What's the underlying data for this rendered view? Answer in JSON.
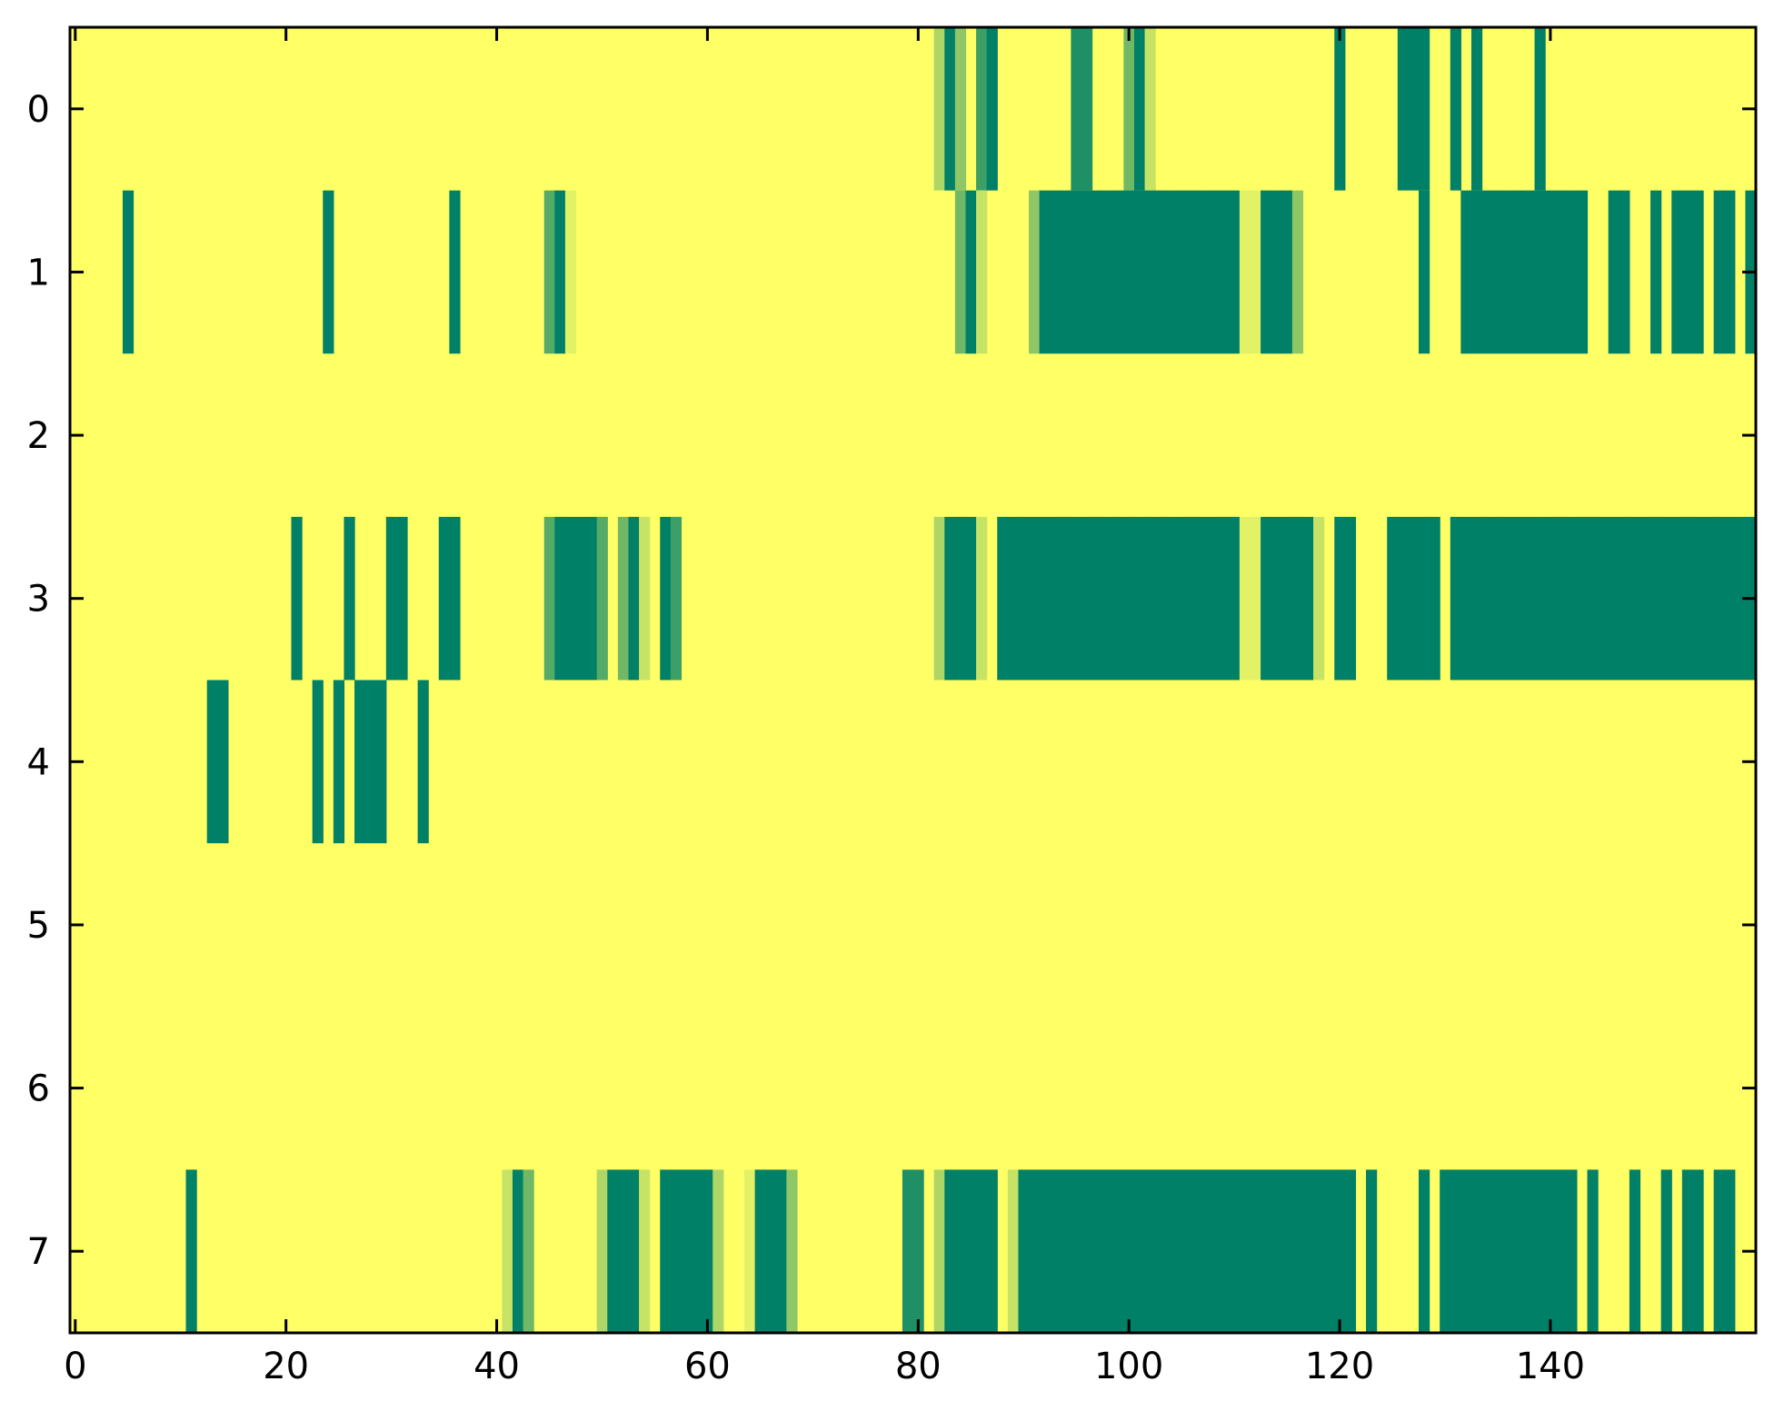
{
  "chart_data": {
    "type": "heatmap",
    "title": "",
    "xlabel": "",
    "ylabel": "",
    "colormap": "summer_r",
    "colors": {
      "low": "#ffff66",
      "high": "#008066"
    },
    "n_rows": 8,
    "n_cols": 160,
    "xlim": [
      -0.5,
      159.5
    ],
    "ylim": [
      7.5,
      -0.5
    ],
    "xticks": [
      0,
      20,
      40,
      60,
      80,
      100,
      120,
      140
    ],
    "xtick_labels": [
      "0",
      "20",
      "40",
      "60",
      "80",
      "100",
      "120",
      "140"
    ],
    "yticks": [
      0,
      1,
      2,
      3,
      4,
      5,
      6,
      7
    ],
    "ytick_labels": [
      "0",
      "1",
      "2",
      "3",
      "4",
      "5",
      "6",
      "7"
    ],
    "default_value": 0,
    "runs_format": "[first_col, last_col, value]",
    "rows": [
      [
        [
          82,
          82,
          0.32
        ],
        [
          83,
          83,
          1
        ],
        [
          84,
          84,
          0.44
        ],
        [
          86,
          86,
          0.76
        ],
        [
          87,
          87,
          1
        ],
        [
          95,
          96,
          0.88
        ],
        [
          100,
          100,
          0.56
        ],
        [
          101,
          101,
          1
        ],
        [
          102,
          102,
          0.22
        ],
        [
          120,
          120,
          1
        ],
        [
          126,
          128,
          1
        ],
        [
          131,
          131,
          1
        ],
        [
          133,
          133,
          1
        ],
        [
          139,
          139,
          1
        ]
      ],
      [
        [
          5,
          5,
          1
        ],
        [
          24,
          24,
          1
        ],
        [
          36,
          36,
          1
        ],
        [
          45,
          45,
          0.67
        ],
        [
          46,
          46,
          1
        ],
        [
          47,
          47,
          0.11
        ],
        [
          84,
          84,
          0.56
        ],
        [
          85,
          85,
          1
        ],
        [
          86,
          86,
          0.22
        ],
        [
          91,
          91,
          0.44
        ],
        [
          92,
          110,
          1
        ],
        [
          111,
          112,
          0.11
        ],
        [
          113,
          115,
          1
        ],
        [
          116,
          116,
          0.44
        ],
        [
          128,
          128,
          1
        ],
        [
          132,
          143,
          1
        ],
        [
          146,
          147,
          1
        ],
        [
          150,
          150,
          1
        ],
        [
          152,
          154,
          1
        ],
        [
          156,
          157,
          1
        ],
        [
          159,
          159,
          1
        ]
      ],
      [],
      [
        [
          21,
          21,
          1
        ],
        [
          26,
          26,
          1
        ],
        [
          30,
          31,
          1
        ],
        [
          35,
          36,
          1
        ],
        [
          45,
          45,
          0.67
        ],
        [
          46,
          49,
          1
        ],
        [
          50,
          50,
          0.67
        ],
        [
          52,
          52,
          0.56
        ],
        [
          53,
          53,
          1
        ],
        [
          54,
          54,
          0.22
        ],
        [
          56,
          56,
          1
        ],
        [
          57,
          57,
          0.76
        ],
        [
          82,
          82,
          0.32
        ],
        [
          83,
          85,
          1
        ],
        [
          86,
          86,
          0.22
        ],
        [
          88,
          110,
          1
        ],
        [
          111,
          112,
          0.11
        ],
        [
          113,
          117,
          1
        ],
        [
          118,
          118,
          0.22
        ],
        [
          120,
          121,
          1
        ],
        [
          125,
          129,
          1
        ],
        [
          131,
          159,
          1
        ]
      ],
      [
        [
          13,
          14,
          1
        ],
        [
          23,
          23,
          1
        ],
        [
          25,
          25,
          1
        ],
        [
          27,
          29,
          1
        ],
        [
          33,
          33,
          1
        ]
      ],
      [],
      [],
      [
        [
          11,
          11,
          1
        ],
        [
          41,
          41,
          0.22
        ],
        [
          42,
          42,
          1
        ],
        [
          43,
          43,
          0.56
        ],
        [
          50,
          50,
          0.32
        ],
        [
          51,
          53,
          1
        ],
        [
          54,
          54,
          0.22
        ],
        [
          56,
          60,
          1
        ],
        [
          61,
          61,
          0.32
        ],
        [
          64,
          64,
          0.11
        ],
        [
          65,
          67,
          1
        ],
        [
          68,
          68,
          0.44
        ],
        [
          79,
          80,
          0.88
        ],
        [
          82,
          82,
          0.32
        ],
        [
          83,
          87,
          1
        ],
        [
          89,
          89,
          0.22
        ],
        [
          90,
          121,
          1
        ],
        [
          123,
          123,
          1
        ],
        [
          128,
          128,
          1
        ],
        [
          130,
          142,
          1
        ],
        [
          144,
          144,
          1
        ],
        [
          148,
          148,
          1
        ],
        [
          151,
          151,
          1
        ],
        [
          153,
          154,
          1
        ],
        [
          156,
          157,
          1
        ]
      ]
    ]
  }
}
